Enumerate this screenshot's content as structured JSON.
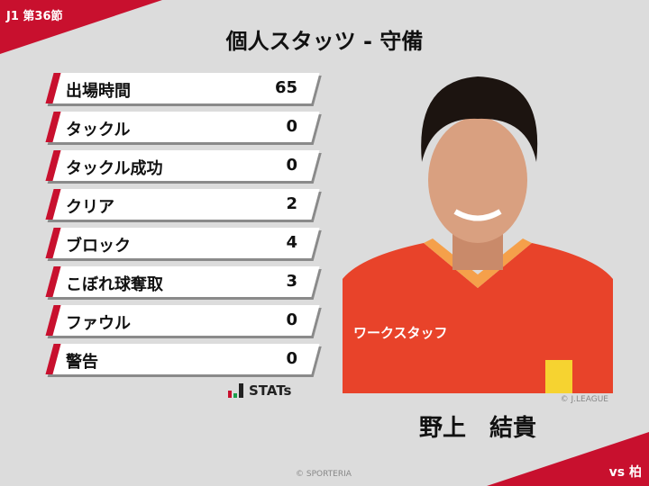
{
  "header": {
    "round": "J1 第36節",
    "title": "個人スタッツ - 守備",
    "opponent": "vs 柏"
  },
  "stats": [
    {
      "label": "出場時間",
      "value": "65"
    },
    {
      "label": "タックル",
      "value": "0"
    },
    {
      "label": "タックル成功",
      "value": "0"
    },
    {
      "label": "クリア",
      "value": "2"
    },
    {
      "label": "ブロック",
      "value": "4"
    },
    {
      "label": "こぼれ球奪取",
      "value": "3"
    },
    {
      "label": "ファウル",
      "value": "0"
    },
    {
      "label": "警告",
      "value": "0"
    }
  ],
  "logo": {
    "text": "STATs",
    "colors": [
      "#c8102e",
      "#1a9e4b",
      "#222222"
    ]
  },
  "player": {
    "name": "野上　結貴",
    "photo_credit": "© J.LEAGUE",
    "shirt_text": "ワークスタッフ"
  },
  "footer": {
    "copyright": "© SPORTERIA"
  },
  "colors": {
    "accent": "#c8102e",
    "background": "#dcdcdc"
  }
}
